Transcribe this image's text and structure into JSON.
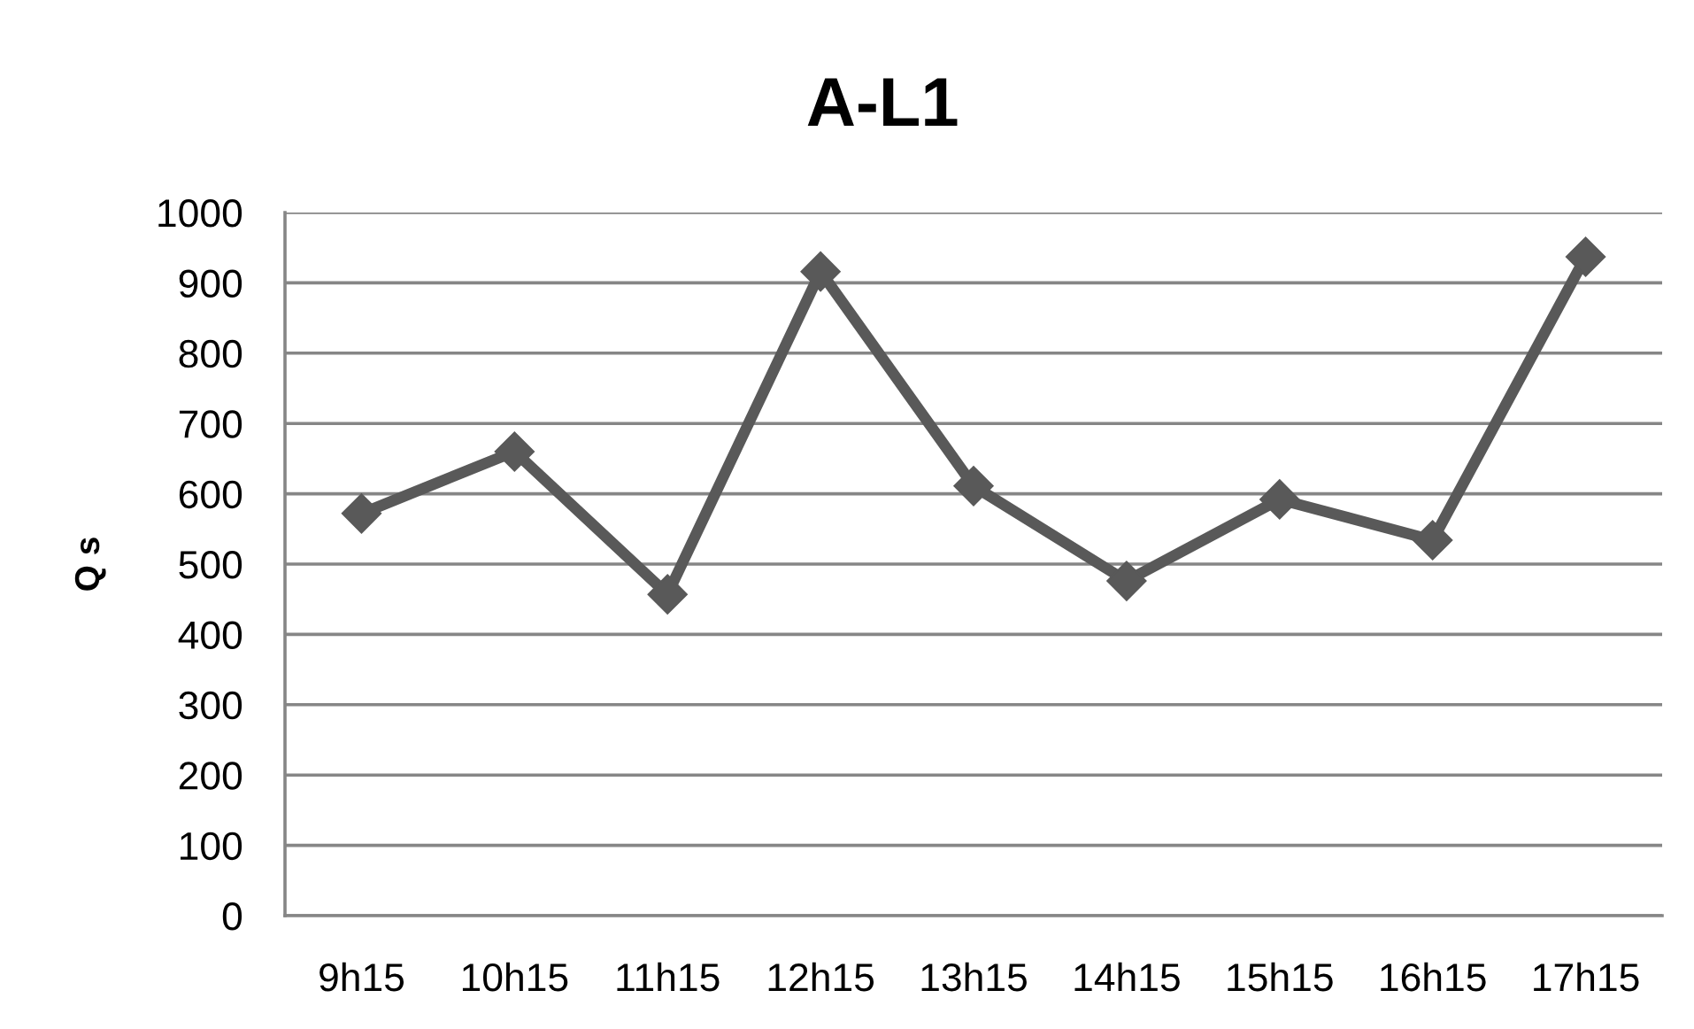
{
  "chart_data": {
    "type": "line",
    "title": "A-L1",
    "ylabel": "Q s",
    "categories": [
      "9h15",
      "10h15",
      "11h15",
      "12h15",
      "13h15",
      "14h15",
      "15h15",
      "16h15",
      "17h15"
    ],
    "series": [
      {
        "color": "#595959",
        "values": [
          572,
          660,
          457,
          916,
          611,
          476,
          592,
          534,
          937
        ]
      }
    ],
    "ylim": [
      0,
      1000
    ],
    "yticks": [
      0,
      100,
      200,
      300,
      400,
      500,
      600,
      700,
      800,
      900,
      1000
    ],
    "grid": "y",
    "marker": "diamond",
    "line_style": "solid"
  }
}
